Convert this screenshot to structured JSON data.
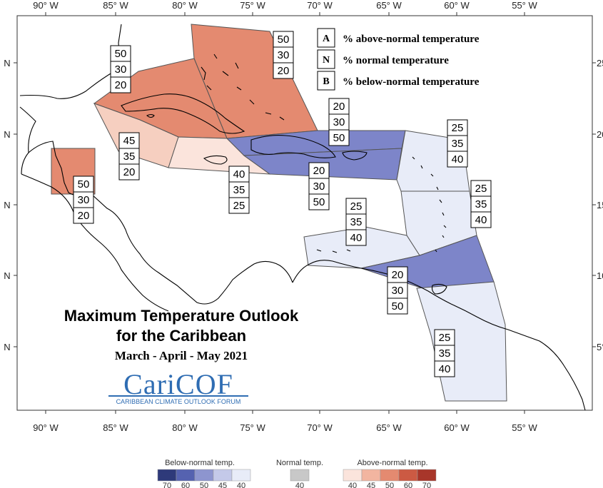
{
  "map": {
    "type": "seasonal-outlook-map",
    "lon_labels": [
      "90° W",
      "85° W",
      "80° W",
      "75° W",
      "70° W",
      "65° W",
      "60° W",
      "55° W"
    ],
    "lat_labels_left": [
      "N",
      "N",
      "N",
      "N",
      "N"
    ],
    "lat_labels_right": [
      "25",
      "20",
      "15",
      "10",
      "5°"
    ],
    "title_line1": "Maximum Temperature Outlook",
    "title_line2": "for the Caribbean",
    "period": "March - April - May 2021",
    "logo_text": "CariCOF",
    "logo_subtitle": "CARIBBEAN CLIMATE OUTLOOK FORUM"
  },
  "legend": {
    "items": [
      {
        "key": "A",
        "label": "% above-normal temperature"
      },
      {
        "key": "N",
        "label": "% normal temperature"
      },
      {
        "key": "B",
        "label": "% below-normal temperature"
      }
    ]
  },
  "regions": [
    {
      "id": "bahamas",
      "probs": [
        "50",
        "30",
        "20"
      ],
      "color": "#e48a70"
    },
    {
      "id": "cuba",
      "probs": [
        "50",
        "30",
        "20"
      ],
      "color": "#e48a70"
    },
    {
      "id": "cayman",
      "probs": [
        "45",
        "35",
        "20"
      ],
      "color": "#f6cfc0"
    },
    {
      "id": "jamaica",
      "probs": [
        "40",
        "35",
        "25"
      ],
      "color": "#fbe4dc"
    },
    {
      "id": "belize",
      "probs": [
        "50",
        "30",
        "20"
      ],
      "color": "#e48a70"
    },
    {
      "id": "turks",
      "probs": [
        "20",
        "30",
        "50"
      ],
      "color": "#7d85c9"
    },
    {
      "id": "hispaniola",
      "probs": [
        "20",
        "30",
        "50"
      ],
      "color": "#7d85c9"
    },
    {
      "id": "leeward",
      "probs": [
        "25",
        "35",
        "40"
      ],
      "color": "#e8ecf8"
    },
    {
      "id": "windward",
      "probs": [
        "25",
        "35",
        "40"
      ],
      "color": "#e8ecf8"
    },
    {
      "id": "abc",
      "probs": [
        "25",
        "35",
        "40"
      ],
      "color": "#e8ecf8"
    },
    {
      "id": "trinidad",
      "probs": [
        "20",
        "30",
        "50"
      ],
      "color": "#7d85c9"
    },
    {
      "id": "guianas",
      "probs": [
        "25",
        "35",
        "40"
      ],
      "color": "#e8ecf8"
    }
  ],
  "scale": {
    "below_label": "Below-normal temp.",
    "normal_label": "Normal temp.",
    "above_label": "Above-normal temp.",
    "below_colors": [
      "#2e3a7a",
      "#5562b0",
      "#8d95cf",
      "#c4c9e9",
      "#e8ecf8"
    ],
    "below_ticks": [
      "70",
      "60",
      "50",
      "45",
      "40"
    ],
    "normal_color": "#c8c8c8",
    "normal_ticks": [
      "40"
    ],
    "above_colors": [
      "#fbe4dc",
      "#f2b5a0",
      "#e48a70",
      "#cc5a43",
      "#a8362a"
    ],
    "above_ticks": [
      "40",
      "45",
      "50",
      "60",
      "70"
    ]
  }
}
